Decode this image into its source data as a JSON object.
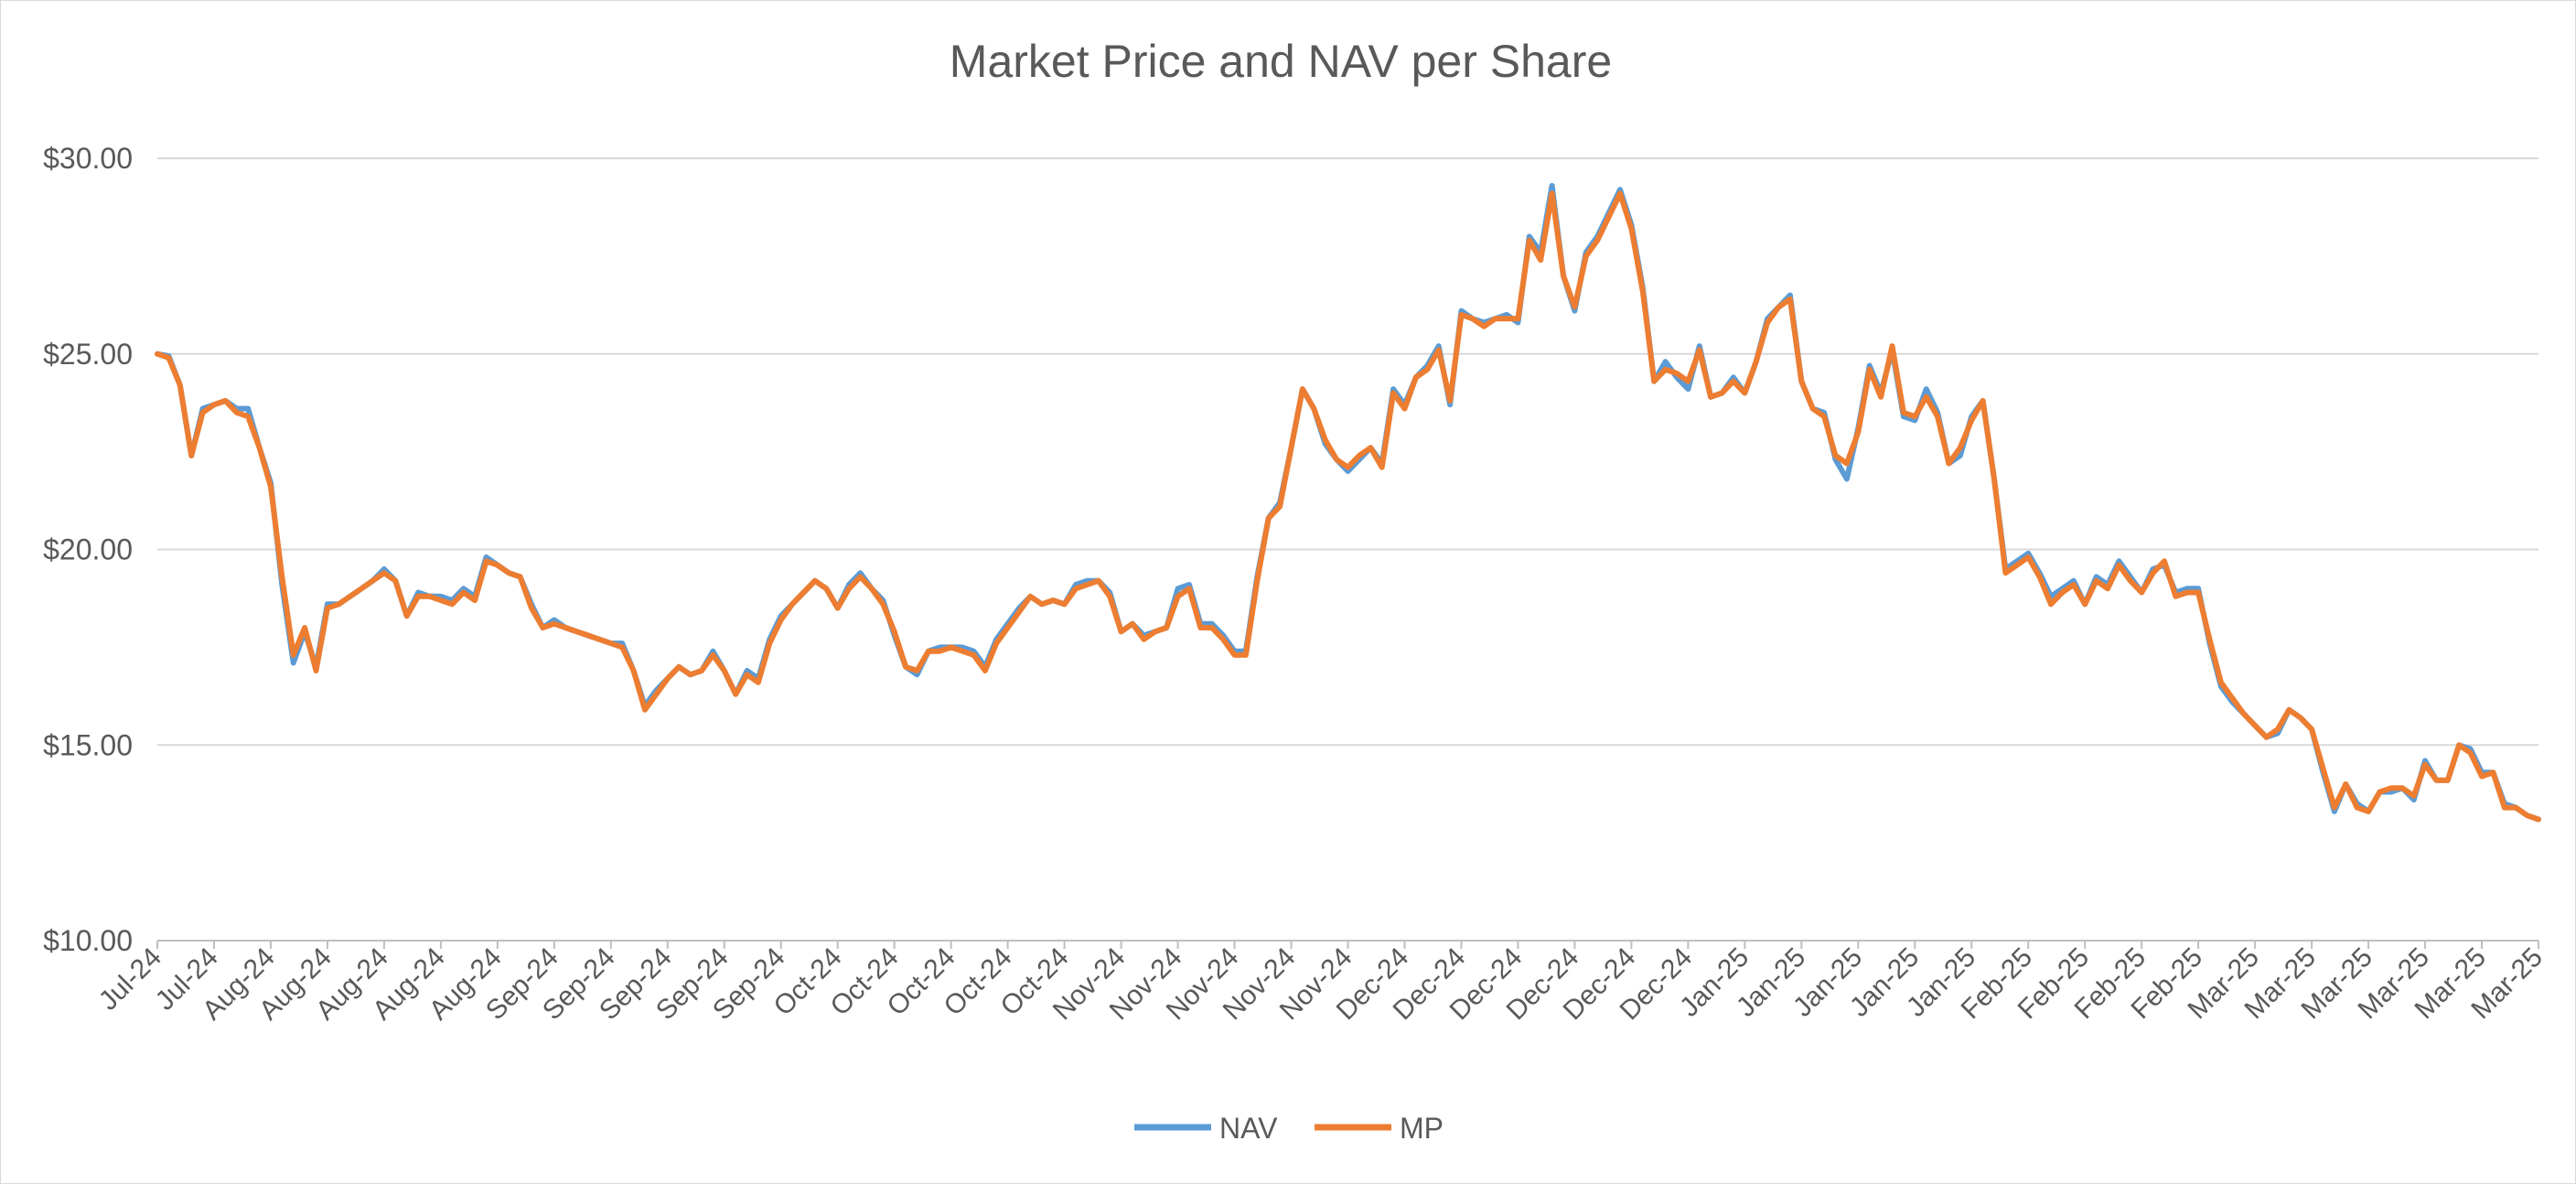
{
  "chart_data": {
    "type": "line",
    "title": "Market Price and NAV per Share",
    "xlabel": "",
    "ylabel": "",
    "ylim": [
      10,
      30
    ],
    "y_ticks": [
      "$10.00",
      "$15.00",
      "$20.00",
      "$25.00",
      "$30.00"
    ],
    "y_tick_values": [
      10,
      15,
      20,
      25,
      30
    ],
    "x_tick_labels": [
      "Jul-24",
      "Jul-24",
      "Aug-24",
      "Aug-24",
      "Aug-24",
      "Aug-24",
      "Aug-24",
      "Sep-24",
      "Sep-24",
      "Sep-24",
      "Sep-24",
      "Sep-24",
      "Oct-24",
      "Oct-24",
      "Oct-24",
      "Oct-24",
      "Oct-24",
      "Nov-24",
      "Nov-24",
      "Nov-24",
      "Nov-24",
      "Nov-24",
      "Dec-24",
      "Dec-24",
      "Dec-24",
      "Dec-24",
      "Dec-24",
      "Dec-24",
      "Jan-25",
      "Jan-25",
      "Jan-25",
      "Jan-25",
      "Jan-25",
      "Feb-25",
      "Feb-25",
      "Feb-25",
      "Feb-25",
      "Mar-25",
      "Mar-25",
      "Mar-25",
      "Mar-25",
      "Mar-25",
      "Mar-25"
    ],
    "grid": true,
    "legend_position": "bottom",
    "series": [
      {
        "name": "NAV",
        "color": "#5B9BD5",
        "values": [
          25.0,
          24.95,
          24.2,
          22.4,
          23.6,
          23.7,
          23.8,
          23.6,
          23.6,
          22.6,
          21.7,
          19.1,
          17.1,
          17.9,
          17.0,
          18.6,
          18.6,
          18.8,
          19.0,
          19.2,
          19.5,
          19.2,
          18.3,
          18.9,
          18.8,
          18.8,
          18.7,
          19.0,
          18.8,
          19.8,
          19.6,
          19.4,
          19.3,
          18.6,
          18.0,
          18.2,
          18.0,
          17.9,
          17.8,
          17.7,
          17.6,
          17.6,
          16.9,
          16.0,
          16.4,
          16.7,
          17.0,
          16.8,
          16.9,
          17.4,
          16.9,
          16.3,
          16.9,
          16.7,
          17.7,
          18.3,
          18.6,
          18.9,
          19.2,
          19.0,
          18.5,
          19.1,
          19.4,
          19.0,
          18.7,
          17.8,
          17.0,
          16.8,
          17.4,
          17.5,
          17.5,
          17.5,
          17.4,
          17.0,
          17.7,
          18.1,
          18.5,
          18.8,
          18.6,
          18.7,
          18.6,
          19.1,
          19.2,
          19.2,
          18.9,
          17.9,
          18.1,
          17.8,
          17.9,
          18.0,
          19.0,
          19.1,
          18.1,
          18.1,
          17.8,
          17.4,
          17.4,
          19.3,
          20.8,
          21.2,
          22.6,
          24.1,
          23.6,
          22.7,
          22.3,
          22.0,
          22.3,
          22.6,
          22.2,
          24.1,
          23.7,
          24.4,
          24.7,
          25.2,
          23.7,
          26.1,
          25.9,
          25.8,
          25.9,
          26.0,
          25.8,
          28.0,
          27.6,
          29.3,
          27.0,
          26.1,
          27.6,
          28.0,
          28.6,
          29.2,
          28.3,
          26.7,
          24.3,
          24.8,
          24.4,
          24.1,
          25.2,
          23.9,
          24.0,
          24.4,
          24.0,
          24.8,
          25.9,
          26.2,
          26.5,
          24.3,
          23.6,
          23.5,
          22.3,
          21.8,
          23.1,
          24.7,
          24.0,
          25.1,
          23.4,
          23.3,
          24.1,
          23.5,
          22.2,
          22.4,
          23.4,
          23.8,
          21.8,
          19.5,
          19.7,
          19.9,
          19.4,
          18.8,
          19.0,
          19.2,
          18.6,
          19.3,
          19.1,
          19.7,
          19.3,
          18.9,
          19.5,
          19.6,
          18.9,
          19.0,
          19.0,
          17.6,
          16.5,
          16.1,
          15.8,
          15.5,
          15.2,
          15.3,
          15.9,
          15.7,
          15.4,
          14.3,
          13.3,
          14.0,
          13.5,
          13.3,
          13.8,
          13.8,
          13.9,
          13.6,
          14.6,
          14.1,
          14.1,
          15.0,
          14.9,
          14.3,
          14.3,
          13.5,
          13.4,
          13.2,
          13.1
        ]
      },
      {
        "name": "MP",
        "color": "#ED7D31",
        "values": [
          25.0,
          24.9,
          24.2,
          22.4,
          23.5,
          23.7,
          23.8,
          23.5,
          23.4,
          22.6,
          21.6,
          19.3,
          17.3,
          18.0,
          16.9,
          18.5,
          18.6,
          18.8,
          19.0,
          19.2,
          19.4,
          19.2,
          18.3,
          18.8,
          18.8,
          18.7,
          18.6,
          18.9,
          18.7,
          19.7,
          19.6,
          19.4,
          19.3,
          18.5,
          18.0,
          18.1,
          18.0,
          17.9,
          17.8,
          17.7,
          17.6,
          17.5,
          16.9,
          15.9,
          16.3,
          16.7,
          17.0,
          16.8,
          16.9,
          17.3,
          16.9,
          16.3,
          16.8,
          16.6,
          17.6,
          18.2,
          18.6,
          18.9,
          19.2,
          19.0,
          18.5,
          19.0,
          19.3,
          19.0,
          18.6,
          17.9,
          17.0,
          16.9,
          17.4,
          17.4,
          17.5,
          17.4,
          17.3,
          16.9,
          17.6,
          18.0,
          18.4,
          18.8,
          18.6,
          18.7,
          18.6,
          19.0,
          19.1,
          19.2,
          18.8,
          17.9,
          18.1,
          17.7,
          17.9,
          18.0,
          18.8,
          19.0,
          18.0,
          18.0,
          17.7,
          17.3,
          17.3,
          19.2,
          20.8,
          21.1,
          22.6,
          24.1,
          23.6,
          22.8,
          22.3,
          22.1,
          22.4,
          22.6,
          22.1,
          24.0,
          23.6,
          24.4,
          24.6,
          25.1,
          23.8,
          26.0,
          25.9,
          25.7,
          25.9,
          25.9,
          25.9,
          27.9,
          27.4,
          29.1,
          27.0,
          26.2,
          27.5,
          27.9,
          28.5,
          29.1,
          28.2,
          26.6,
          24.3,
          24.6,
          24.5,
          24.3,
          25.1,
          23.9,
          24.0,
          24.3,
          24.0,
          24.8,
          25.8,
          26.2,
          26.4,
          24.3,
          23.6,
          23.4,
          22.4,
          22.2,
          23.0,
          24.6,
          23.9,
          25.2,
          23.5,
          23.4,
          23.9,
          23.4,
          22.2,
          22.6,
          23.3,
          23.8,
          21.8,
          19.4,
          19.6,
          19.8,
          19.3,
          18.6,
          18.9,
          19.1,
          18.6,
          19.2,
          19.0,
          19.6,
          19.2,
          18.9,
          19.4,
          19.7,
          18.8,
          18.9,
          18.9,
          17.7,
          16.6,
          16.2,
          15.8,
          15.5,
          15.2,
          15.4,
          15.9,
          15.7,
          15.4,
          14.4,
          13.4,
          14.0,
          13.4,
          13.3,
          13.8,
          13.9,
          13.9,
          13.7,
          14.5,
          14.1,
          14.1,
          15.0,
          14.8,
          14.2,
          14.3,
          13.4,
          13.4,
          13.2,
          13.1
        ]
      }
    ]
  }
}
